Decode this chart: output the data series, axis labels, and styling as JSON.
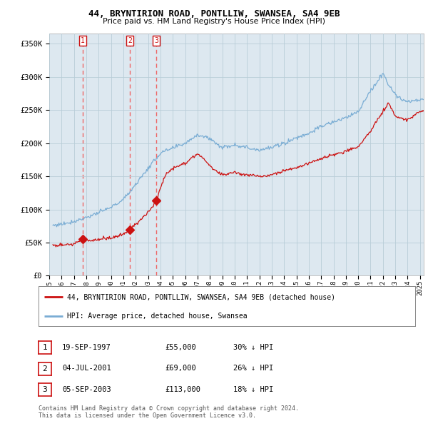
{
  "title_line1": "44, BRYNTIRION ROAD, PONTLLIW, SWANSEA, SA4 9EB",
  "title_line2": "Price paid vs. HM Land Registry's House Price Index (HPI)",
  "ylabel_ticks": [
    "£0",
    "£50K",
    "£100K",
    "£150K",
    "£200K",
    "£250K",
    "£300K",
    "£350K"
  ],
  "ytick_values": [
    0,
    50000,
    100000,
    150000,
    200000,
    250000,
    300000,
    350000
  ],
  "ylim": [
    0,
    365000
  ],
  "xlim_start": 1995.3,
  "xlim_end": 2025.3,
  "hpi_color": "#7aadd4",
  "sale_color": "#cc1111",
  "dashed_color": "#ee6666",
  "background_color": "#ffffff",
  "chart_bg_color": "#dde8f0",
  "grid_color": "#b8cdd8",
  "sales": [
    {
      "date": 1997.72,
      "price": 55000,
      "label": "1"
    },
    {
      "date": 2001.51,
      "price": 69000,
      "label": "2"
    },
    {
      "date": 2003.67,
      "price": 113000,
      "label": "3"
    }
  ],
  "legend_entries": [
    "44, BRYNTIRION ROAD, PONTLLIW, SWANSEA, SA4 9EB (detached house)",
    "HPI: Average price, detached house, Swansea"
  ],
  "table_rows": [
    [
      "1",
      "19-SEP-1997",
      "£55,000",
      "30% ↓ HPI"
    ],
    [
      "2",
      "04-JUL-2001",
      "£69,000",
      "26% ↓ HPI"
    ],
    [
      "3",
      "05-SEP-2003",
      "£113,000",
      "18% ↓ HPI"
    ]
  ],
  "footnote": "Contains HM Land Registry data © Crown copyright and database right 2024.\nThis data is licensed under the Open Government Licence v3.0.",
  "xtick_years": [
    1995,
    1996,
    1997,
    1998,
    1999,
    2000,
    2001,
    2002,
    2003,
    2004,
    2005,
    2006,
    2007,
    2008,
    2009,
    2010,
    2011,
    2012,
    2013,
    2014,
    2015,
    2016,
    2017,
    2018,
    2019,
    2020,
    2021,
    2022,
    2023,
    2024,
    2025
  ],
  "hpi_anchors_years": [
    1995,
    1996,
    1997,
    1998,
    1999,
    2000,
    2001,
    2002,
    2003,
    2004,
    2005,
    2006,
    2007,
    2008,
    2009,
    2010,
    2011,
    2012,
    2013,
    2014,
    2015,
    2016,
    2017,
    2018,
    2019,
    2020,
    2021,
    2022,
    2023,
    2024,
    2025
  ],
  "hpi_anchors_vals": [
    75000,
    78000,
    82000,
    88000,
    95000,
    103000,
    115000,
    138000,
    162000,
    185000,
    192000,
    200000,
    213000,
    207000,
    193000,
    198000,
    193000,
    190000,
    193000,
    200000,
    208000,
    215000,
    225000,
    232000,
    238000,
    248000,
    278000,
    305000,
    272000,
    262000,
    265000
  ],
  "sale_anchors_years": [
    1995.0,
    1997.0,
    1997.72,
    1998.2,
    1999.0,
    2000.0,
    2001.0,
    2001.51,
    2002.0,
    2003.0,
    2003.67,
    2004.0,
    2004.5,
    2005.0,
    2006.0,
    2007.0,
    2007.5,
    2008.0,
    2008.5,
    2009.0,
    2010.0,
    2011.0,
    2012.0,
    2013.0,
    2014.0,
    2015.0,
    2016.0,
    2017.0,
    2018.0,
    2019.0,
    2020.0,
    2021.0,
    2022.0,
    2022.5,
    2023.0,
    2024.0,
    2025.0
  ],
  "sale_anchors_vals": [
    45000,
    48000,
    55000,
    53000,
    55000,
    57000,
    62000,
    69000,
    78000,
    95000,
    113000,
    133000,
    155000,
    162000,
    170000,
    183000,
    178000,
    165000,
    158000,
    152000,
    156000,
    152000,
    149000,
    152000,
    158000,
    163000,
    170000,
    177000,
    183000,
    188000,
    194000,
    218000,
    248000,
    260000,
    240000,
    235000,
    248000
  ],
  "hpi_noise_std": 1500,
  "sale_noise_std": 1200,
  "random_seed": 77
}
